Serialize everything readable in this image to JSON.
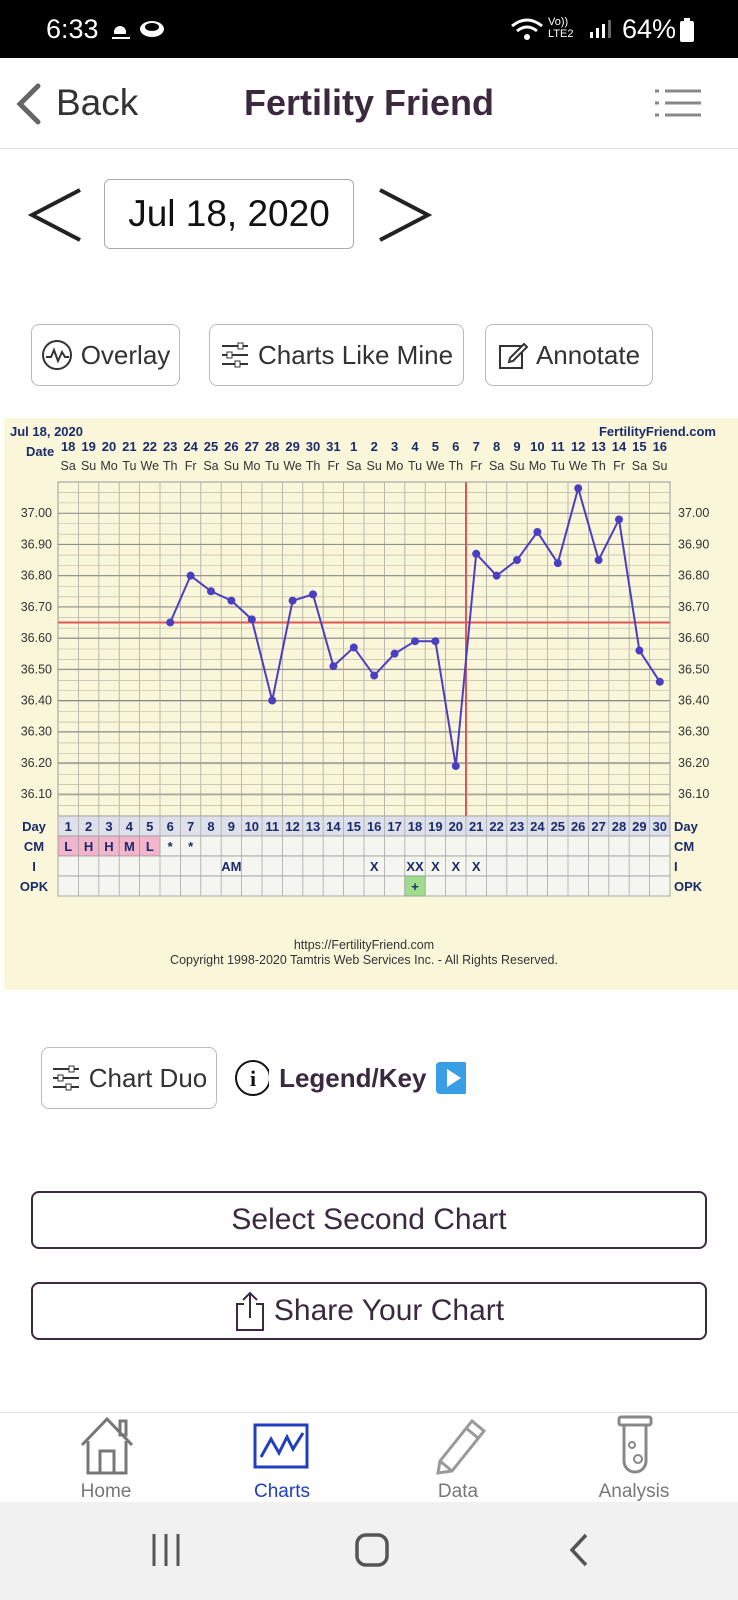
{
  "status_bar": {
    "time": "6:33",
    "network": "Vo)) LTE2",
    "battery": "64%"
  },
  "nav": {
    "back_label": "Back",
    "title": "Fertility Friend"
  },
  "date_selector": {
    "value": "Jul 18, 2020"
  },
  "toolbar": {
    "overlay": "Overlay",
    "charts_like_mine": "Charts Like Mine",
    "annotate": "Annotate"
  },
  "chart_data": {
    "type": "line",
    "title": "Jul 18, 2020",
    "site": "FertilityFriend.com",
    "footer_url": "https://FertilityFriend.com",
    "footer_copy": "Copyright 1998-2020 Tamtris Web Services Inc. - All Rights Reserved.",
    "date_row_label": "Date",
    "dates": [
      "18",
      "19",
      "20",
      "21",
      "22",
      "23",
      "24",
      "25",
      "26",
      "27",
      "28",
      "29",
      "30",
      "31",
      "1",
      "2",
      "3",
      "4",
      "5",
      "6",
      "7",
      "8",
      "9",
      "10",
      "11",
      "12",
      "13",
      "14",
      "15",
      "16"
    ],
    "weekdays": [
      "Sa",
      "Su",
      "Mo",
      "Tu",
      "We",
      "Th",
      "Fr",
      "Sa",
      "Su",
      "Mo",
      "Tu",
      "We",
      "Th",
      "Fr",
      "Sa",
      "Su",
      "Mo",
      "Tu",
      "We",
      "Th",
      "Fr",
      "Sa",
      "Su",
      "Mo",
      "Tu",
      "We",
      "Th",
      "Fr",
      "Sa",
      "Su"
    ],
    "y_ticks": [
      "37.00",
      "36.90",
      "36.80",
      "36.70",
      "36.60",
      "36.50",
      "36.40",
      "36.30",
      "36.20",
      "36.10"
    ],
    "ylim": [
      36.03,
      37.1
    ],
    "temps": [
      null,
      null,
      null,
      null,
      null,
      36.65,
      36.8,
      36.75,
      36.72,
      36.66,
      36.4,
      36.72,
      36.74,
      36.51,
      36.57,
      36.48,
      36.55,
      36.59,
      36.59,
      36.19,
      36.87,
      36.8,
      36.85,
      36.94,
      36.84,
      37.08,
      36.85,
      36.98,
      36.56,
      36.46
    ],
    "coverline": 36.65,
    "ovulation_day": 20,
    "line_color": "#4a3fc2",
    "coverline_color": "#e05555",
    "row_labels": {
      "day": "Day",
      "cm": "CM",
      "i": "I",
      "opk": "OPK"
    },
    "cm": [
      "L",
      "H",
      "H",
      "M",
      "L",
      "*",
      "*",
      "",
      "",
      "",
      "",
      "",
      "",
      "",
      "",
      "",
      "",
      "",
      "",
      "",
      "",
      "",
      "",
      "",
      "",
      "",
      "",
      "",
      "",
      ""
    ],
    "intercourse": [
      "",
      "",
      "",
      "",
      "",
      "",
      "",
      "",
      "AM",
      "",
      "",
      "",
      "",
      "",
      "",
      "X",
      "",
      "XX",
      "X",
      "X",
      "X",
      "",
      "",
      "",
      "",
      "",
      "",
      "",
      "",
      ""
    ],
    "opk": [
      "",
      "",
      "",
      "",
      "",
      "",
      "",
      "",
      "",
      "",
      "",
      "",
      "",
      "",
      "",
      "",
      "",
      "+",
      "",
      "",
      "",
      "",
      "",
      "",
      "",
      "",
      "",
      "",
      "",
      ""
    ]
  },
  "chart_duo": {
    "label": "Chart Duo",
    "legend": "Legend/Key"
  },
  "actions": {
    "select_second": "Select Second Chart",
    "share": "Share Your Chart"
  },
  "tabbar": {
    "home": "Home",
    "charts": "Charts",
    "data": "Data",
    "analysis": "Analysis"
  }
}
